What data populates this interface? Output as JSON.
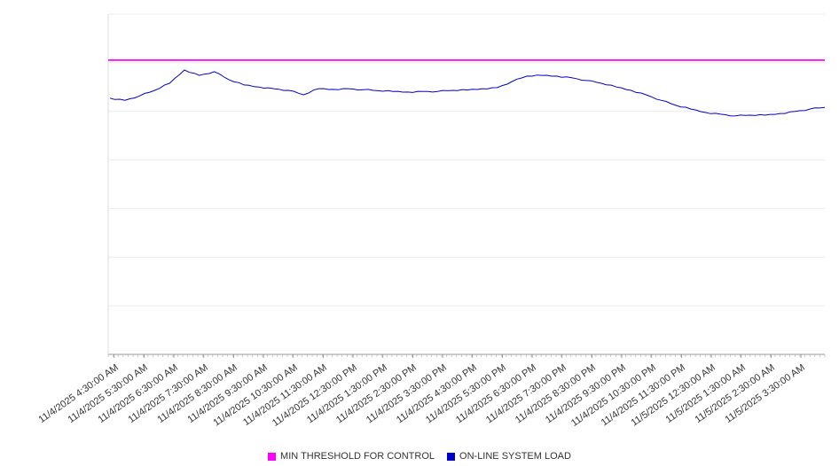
{
  "chart_data": {
    "type": "line",
    "title": "",
    "xlabel": "",
    "ylabel": "",
    "grid": true,
    "legend_position": "bottom",
    "ylim": [
      0,
      100
    ],
    "y_gridline_count": 8,
    "colors": {
      "background": "#ffffff",
      "grid": "#ebebeb",
      "axis": "#9a9a9a",
      "minor_tick": "#aaaaaa",
      "label": "#333333"
    },
    "categories": [
      "11/4/2025 4:30:00 AM",
      "11/4/2025 5:30:00 AM",
      "11/4/2025 6:30:00 AM",
      "11/4/2025 7:30:00 AM",
      "11/4/2025 8:30:00 AM",
      "11/4/2025 9:30:00 AM",
      "11/4/2025 10:30:00 AM",
      "11/4/2025 11:30:00 AM",
      "11/4/2025 12:30:00 PM",
      "11/4/2025 1:30:00 PM",
      "11/4/2025 2:30:00 PM",
      "11/4/2025 3:30:00 PM",
      "11/4/2025 4:30:00 PM",
      "11/4/2025 5:30:00 PM",
      "11/4/2025 6:30:00 PM",
      "11/4/2025 7:30:00 PM",
      "11/4/2025 8:30:00 PM",
      "11/4/2025 9:30:00 PM",
      "11/4/2025 10:30:00 PM",
      "11/4/2025 11:30:00 PM",
      "11/5/2025 12:30:00 AM",
      "11/5/2025 1:30:00 AM",
      "11/5/2025 2:30:00 AM",
      "11/5/2025 3:30:00 AM"
    ],
    "series": [
      {
        "name": "MIN THRESHOLD FOR CONTROL",
        "color": "#ff00ff",
        "role": "threshold",
        "value": 86.5
      },
      {
        "name": "ON-LINE SYSTEM LOAD",
        "color": "#0000cd",
        "role": "line",
        "values": [
          75.3,
          74.7,
          76.0,
          77.6,
          79.7,
          83.6,
          82.0,
          83.1,
          80.7,
          79.2,
          78.6,
          78.1,
          77.6,
          76.3,
          78.1,
          77.9,
          78.1,
          77.8,
          77.5,
          77.3,
          77.1,
          77.3,
          77.3,
          77.6,
          77.7,
          78.1,
          78.4,
          80.2,
          81.8,
          82.0,
          81.8,
          81.3,
          80.5,
          79.7,
          78.6,
          77.6,
          76.3,
          74.7,
          73.2,
          72.1,
          71.1,
          70.6,
          70.1,
          70.3,
          70.3,
          70.8,
          71.4,
          72.1,
          72.6
        ]
      }
    ]
  }
}
